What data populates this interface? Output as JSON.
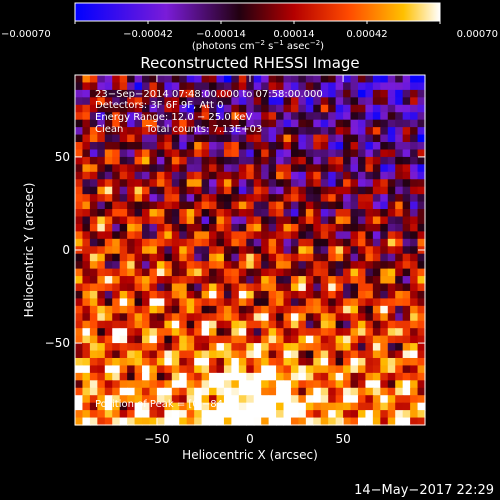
{
  "chart_data": {
    "type": "heatmap",
    "title": "Reconstructed RHESSI Image",
    "xlabel": "Heliocentric X (arcsec)",
    "ylabel": "Heliocentric Y (arcsec)",
    "xlim": [
      -94,
      94
    ],
    "ylim": [
      -94,
      94
    ],
    "x_ticks": [
      -50,
      0,
      50
    ],
    "y_ticks": [
      50,
      0,
      -50
    ],
    "x_tick_labels": [
      "−50",
      "0",
      "50"
    ],
    "y_tick_labels": [
      "50",
      "0",
      "−50"
    ],
    "colorbar": {
      "min": -0.0007,
      "max": 0.0007,
      "ticks": [
        -0.0007,
        -0.00042,
        -0.00014,
        0.00014,
        0.00042,
        0.0007
      ],
      "tick_labels": [
        "−0.00070",
        "−0.00042",
        "−0.00014",
        "0.00014",
        "0.00042",
        "0.00070"
      ],
      "unit_main": "(photons cm",
      "unit_sup1": "−2",
      "unit_mid": " s",
      "unit_sup2": "−1",
      "unit_after": " asec",
      "unit_sup3": "−2",
      "unit_end": ")"
    },
    "annotations": {
      "time_range": "23−Sep−2014 07:48:00.000 to 07:58:00.000",
      "detectors": "Detectors: 3F 6F 9F, Att 0",
      "energy": "Energy Range: 12.0 − 25.0 keV",
      "clean": "Clean",
      "counts": "Total counts: 7.13E+03",
      "peak": "Position of Peak = [0,−84]"
    },
    "peak_position": [
      0,
      -84
    ],
    "grid": false
  },
  "footer": {
    "date": "14−May−2017 22:29"
  }
}
